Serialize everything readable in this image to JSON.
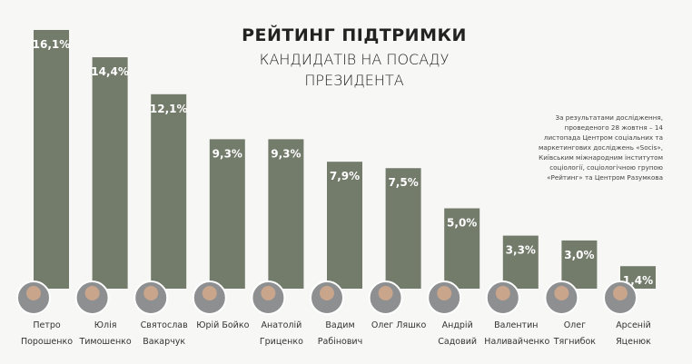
{
  "chart_data": {
    "type": "bar",
    "title": "РЕЙТИНГ ПІДТРИМКИ",
    "subtitle": "КАНДИДАТІВ НА ПОСАДУ ПРЕЗИДЕНТА",
    "annotation": "За результатами дослідження, проведеного 28 жовтня – 14 листопада Центром соціальних та маркетингових досліджень «Socis», Київським міжнародним інститутом соціології, соціологічною групою «Рейтинг» та Центром Разумкова",
    "categories": [
      "Петро Порошенко",
      "Юлія Тимошенко",
      "Святослав Вакарчук",
      "Юрій Бойко",
      "Анатолій Гриценко",
      "Вадим Рабінович",
      "Олег Ляшко",
      "Андрій Садовий",
      "Валентин Наливайченко",
      "Олег Тягнибок",
      "Арсеній Яценюк"
    ],
    "values": [
      16.1,
      14.4,
      12.1,
      9.3,
      9.3,
      7.9,
      7.5,
      5.0,
      3.3,
      3.0,
      1.4
    ],
    "value_labels": [
      "16,1%",
      "14,4%",
      "12,1%",
      "9,3%",
      "9,3%",
      "7,9%",
      "7,5%",
      "5,0%",
      "3,3%",
      "3,0%",
      "1,4%"
    ],
    "color": "#737b6b"
  }
}
